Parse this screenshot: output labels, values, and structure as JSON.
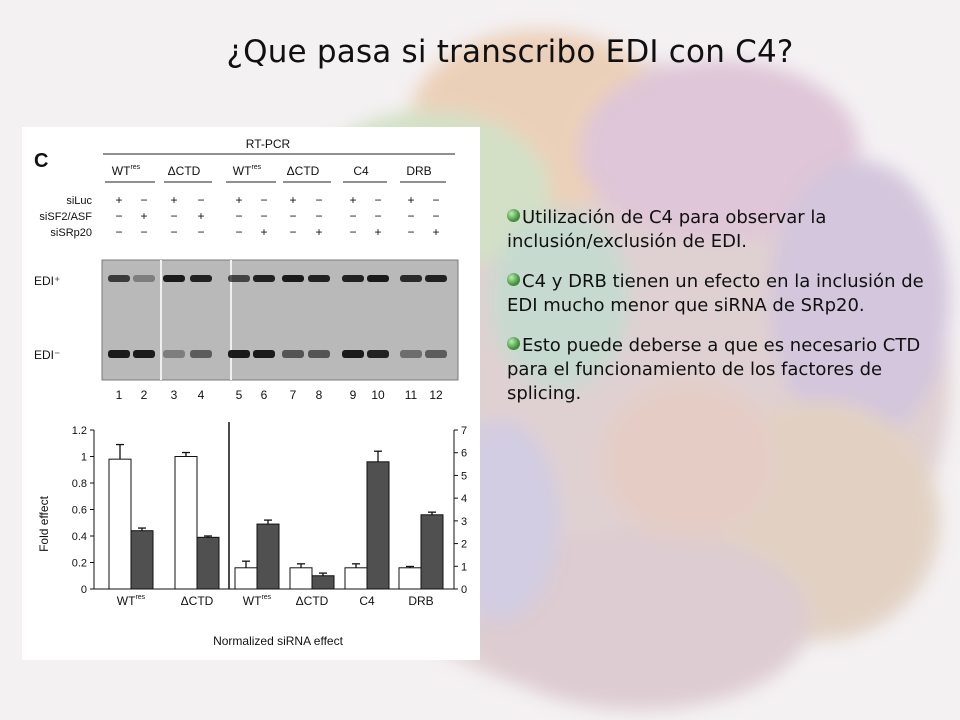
{
  "slide": {
    "title": "¿Que pasa si transcribo EDI con C4?",
    "bullets": [
      "Utilización de C4 para observar la inclusión/exclusión de EDI.",
      "C4 y DRB tienen un efecto en la inclusión de EDI mucho menor que siRNA de SRp20.",
      "Esto puede deberse a que es necesario CTD para el funcionamiento de los factores de splicing."
    ]
  },
  "figure": {
    "panel_label": "C",
    "method": "RT-PCR",
    "groups": [
      "WT",
      "ΔCTD",
      "WT",
      "ΔCTD",
      "C4",
      "DRB"
    ],
    "groups_superscript": [
      "res",
      "",
      "res",
      "",
      "",
      ""
    ],
    "row_labels": [
      "siLuc",
      "siSF2/ASF",
      "siSRp20"
    ],
    "signs": [
      [
        "+",
        "−",
        "+",
        "−",
        "+",
        "−",
        "+",
        "−",
        "+",
        "−",
        "+",
        "−"
      ],
      [
        "−",
        "+",
        "−",
        "+",
        "−",
        "−",
        "−",
        "−",
        "−",
        "−",
        "−",
        "−"
      ],
      [
        "−",
        "−",
        "−",
        "−",
        "−",
        "+",
        "−",
        "+",
        "−",
        "+",
        "−",
        "+"
      ]
    ],
    "band_labels": [
      "EDI⁺",
      "EDI⁻"
    ],
    "lane_numbers": [
      "1",
      "2",
      "3",
      "4",
      "5",
      "6",
      "7",
      "8",
      "9",
      "10",
      "11",
      "12"
    ]
  },
  "chart_data": {
    "type": "bar",
    "categories": [
      "WT",
      "ΔCTD",
      "WT",
      "ΔCTD",
      "C4",
      "DRB"
    ],
    "category_superscripts": [
      "res",
      "",
      "res",
      "",
      "",
      ""
    ],
    "series": [
      {
        "values": [
          0.98,
          1.0,
          0.16,
          0.16,
          0.16,
          0.16
        ],
        "errors": [
          0.11,
          0.03,
          0.05,
          0.03,
          0.03,
          0.01
        ],
        "fill": "#ffffff"
      },
      {
        "values": [
          0.44,
          0.39,
          0.49,
          0.1,
          0.96,
          0.56
        ],
        "errors": [
          0.02,
          0.01,
          0.03,
          0.02,
          0.08,
          0.02
        ],
        "fill": "#505050"
      }
    ],
    "ylabel": "Fold effect",
    "xlabel": "Normalized siRNA effect",
    "ylim": [
      0,
      1.2
    ],
    "yticks_left": [
      "0",
      "0.2",
      "0.4",
      "0.6",
      "0.8",
      "1",
      "1.2"
    ],
    "yticks_right": [
      "0",
      "1",
      "2",
      "3",
      "4",
      "5",
      "6",
      "7"
    ]
  }
}
